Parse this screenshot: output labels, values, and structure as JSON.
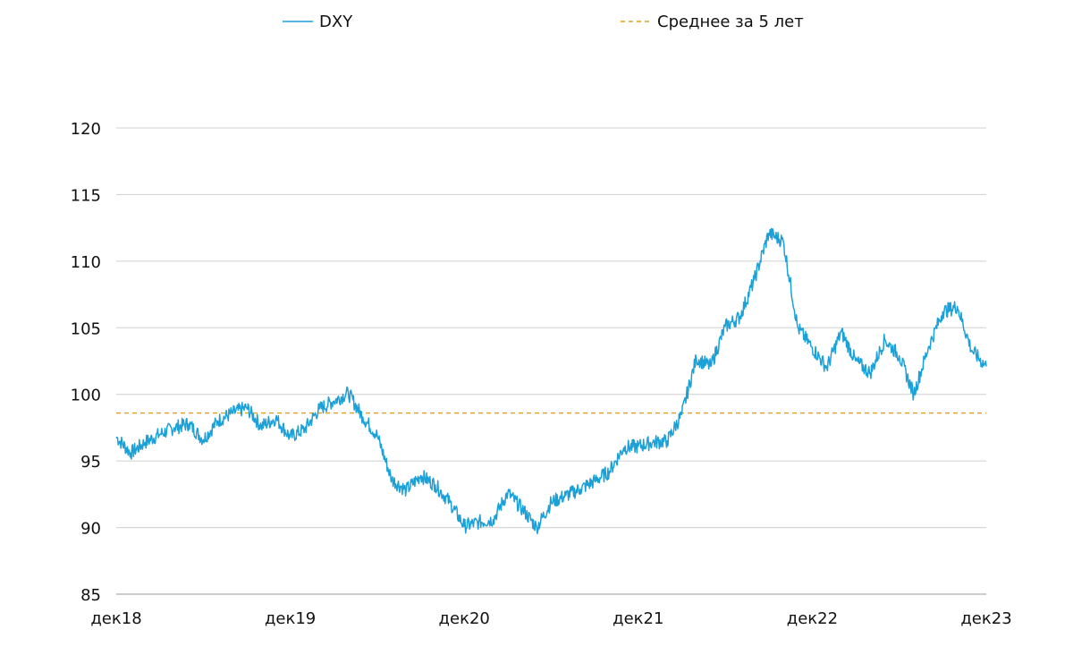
{
  "chart_data": {
    "type": "line",
    "title": "",
    "xlabel": "",
    "ylabel": "",
    "ylim": [
      85,
      120
    ],
    "yticks": [
      "85",
      "90",
      "95",
      "100",
      "105",
      "110",
      "115",
      "120"
    ],
    "x_range": [
      "2018-12",
      "2023-12"
    ],
    "xticks": [
      {
        "date": "2018-12",
        "label": "дек18"
      },
      {
        "date": "2019-12",
        "label": "дек19"
      },
      {
        "date": "2020-12",
        "label": "дек20"
      },
      {
        "date": "2021-12",
        "label": "дек21"
      },
      {
        "date": "2022-12",
        "label": "дек22"
      },
      {
        "date": "2023-12",
        "label": "дек23"
      }
    ],
    "grid": true,
    "legend_position": "top",
    "series": [
      {
        "name": "DXY",
        "color": "#1ba1d8",
        "style": "solid",
        "x": [
          "2018-12",
          "2019-01",
          "2019-02",
          "2019-03",
          "2019-04",
          "2019-05",
          "2019-06",
          "2019-07",
          "2019-08",
          "2019-09",
          "2019-10",
          "2019-11",
          "2019-12",
          "2020-01",
          "2020-02",
          "2020-03",
          "2020-04",
          "2020-05",
          "2020-06",
          "2020-07",
          "2020-08",
          "2020-09",
          "2020-10",
          "2020-11",
          "2020-12",
          "2021-01",
          "2021-02",
          "2021-03",
          "2021-04",
          "2021-05",
          "2021-06",
          "2021-07",
          "2021-08",
          "2021-09",
          "2021-10",
          "2021-11",
          "2021-12",
          "2022-01",
          "2022-02",
          "2022-03",
          "2022-04",
          "2022-05",
          "2022-06",
          "2022-07",
          "2022-08",
          "2022-09",
          "2022-10",
          "2022-11",
          "2022-12",
          "2023-01",
          "2023-02",
          "2023-03",
          "2023-04",
          "2023-05",
          "2023-06",
          "2023-07",
          "2023-08",
          "2023-09",
          "2023-10",
          "2023-11",
          "2023-12"
        ],
        "values": [
          96.8,
          95.6,
          96.4,
          97.0,
          97.5,
          97.8,
          96.6,
          98.0,
          98.6,
          99.0,
          97.6,
          98.2,
          96.8,
          97.4,
          98.9,
          99.5,
          100.1,
          98.3,
          96.9,
          93.6,
          92.8,
          93.9,
          93.2,
          91.9,
          90.1,
          90.4,
          90.6,
          92.6,
          91.4,
          90.0,
          91.9,
          92.4,
          92.9,
          93.5,
          94.2,
          96.0,
          96.1,
          96.4,
          96.5,
          98.5,
          102.7,
          102.1,
          105.1,
          105.8,
          108.6,
          112.1,
          111.5,
          105.0,
          103.5,
          102.0,
          104.7,
          102.5,
          101.6,
          104.1,
          102.9,
          100.0,
          103.5,
          106.2,
          106.6,
          103.3,
          102.1
        ]
      },
      {
        "name": "Среднее за 5 лет",
        "color": "#e2a020",
        "style": "dashed",
        "value": 98.6
      }
    ]
  }
}
